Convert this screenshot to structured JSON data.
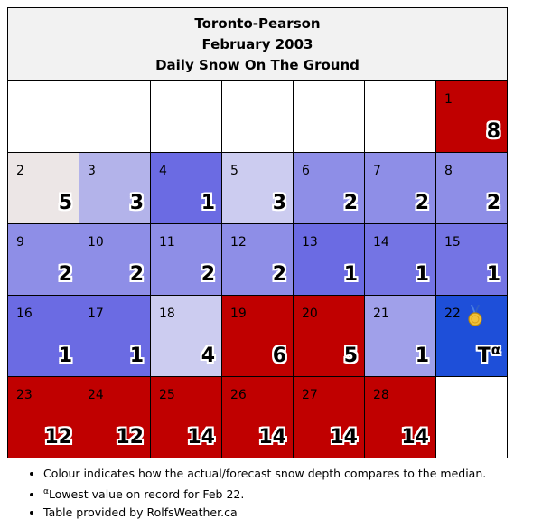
{
  "header": {
    "station": "Toronto-Pearson",
    "month": "February 2003",
    "metric": "Daily Snow On The Ground"
  },
  "chart_data": {
    "type": "table",
    "title": "Toronto-Pearson February 2003 Daily Snow On The Ground",
    "days": [
      {
        "day": 1,
        "value": "8",
        "color": "#c00000"
      },
      {
        "day": 2,
        "value": "5",
        "color": "#ece6e6"
      },
      {
        "day": 3,
        "value": "3",
        "color": "#b3b3ea"
      },
      {
        "day": 4,
        "value": "1",
        "color": "#6b6be3"
      },
      {
        "day": 5,
        "value": "3",
        "color": "#ccccf0"
      },
      {
        "day": 6,
        "value": "2",
        "color": "#8e8ee7"
      },
      {
        "day": 7,
        "value": "2",
        "color": "#8e8ee7"
      },
      {
        "day": 8,
        "value": "2",
        "color": "#8e8ee7"
      },
      {
        "day": 9,
        "value": "2",
        "color": "#8e8ee7"
      },
      {
        "day": 10,
        "value": "2",
        "color": "#8e8ee7"
      },
      {
        "day": 11,
        "value": "2",
        "color": "#8e8ee7"
      },
      {
        "day": 12,
        "value": "2",
        "color": "#8e8ee7"
      },
      {
        "day": 13,
        "value": "1",
        "color": "#6b6be3"
      },
      {
        "day": 14,
        "value": "1",
        "color": "#7474e4"
      },
      {
        "day": 15,
        "value": "1",
        "color": "#7474e4"
      },
      {
        "day": 16,
        "value": "1",
        "color": "#6b6be3"
      },
      {
        "day": 17,
        "value": "1",
        "color": "#6b6be3"
      },
      {
        "day": 18,
        "value": "4",
        "color": "#ccccf0"
      },
      {
        "day": 19,
        "value": "6",
        "color": "#c00000"
      },
      {
        "day": 20,
        "value": "5",
        "color": "#c00000"
      },
      {
        "day": 21,
        "value": "1",
        "color": "#a0a0ea"
      },
      {
        "day": 22,
        "value": "T",
        "note": "α",
        "color": "#1e4fd9",
        "medal": true
      },
      {
        "day": 23,
        "value": "12",
        "color": "#c00000"
      },
      {
        "day": 24,
        "value": "12",
        "color": "#c00000"
      },
      {
        "day": 25,
        "value": "14",
        "color": "#c00000"
      },
      {
        "day": 26,
        "value": "14",
        "color": "#c00000"
      },
      {
        "day": 27,
        "value": "14",
        "color": "#c00000"
      },
      {
        "day": 28,
        "value": "14",
        "color": "#c00000"
      }
    ]
  },
  "footnotes": {
    "colour": "Colour indicates how the actual/forecast snow depth compares to the median.",
    "alpha_mark": "α",
    "alpha_text": "Lowest value on record for Feb 22.",
    "credit": "Table provided by RolfsWeather.ca"
  },
  "icons": {
    "medal": "medal-icon"
  }
}
